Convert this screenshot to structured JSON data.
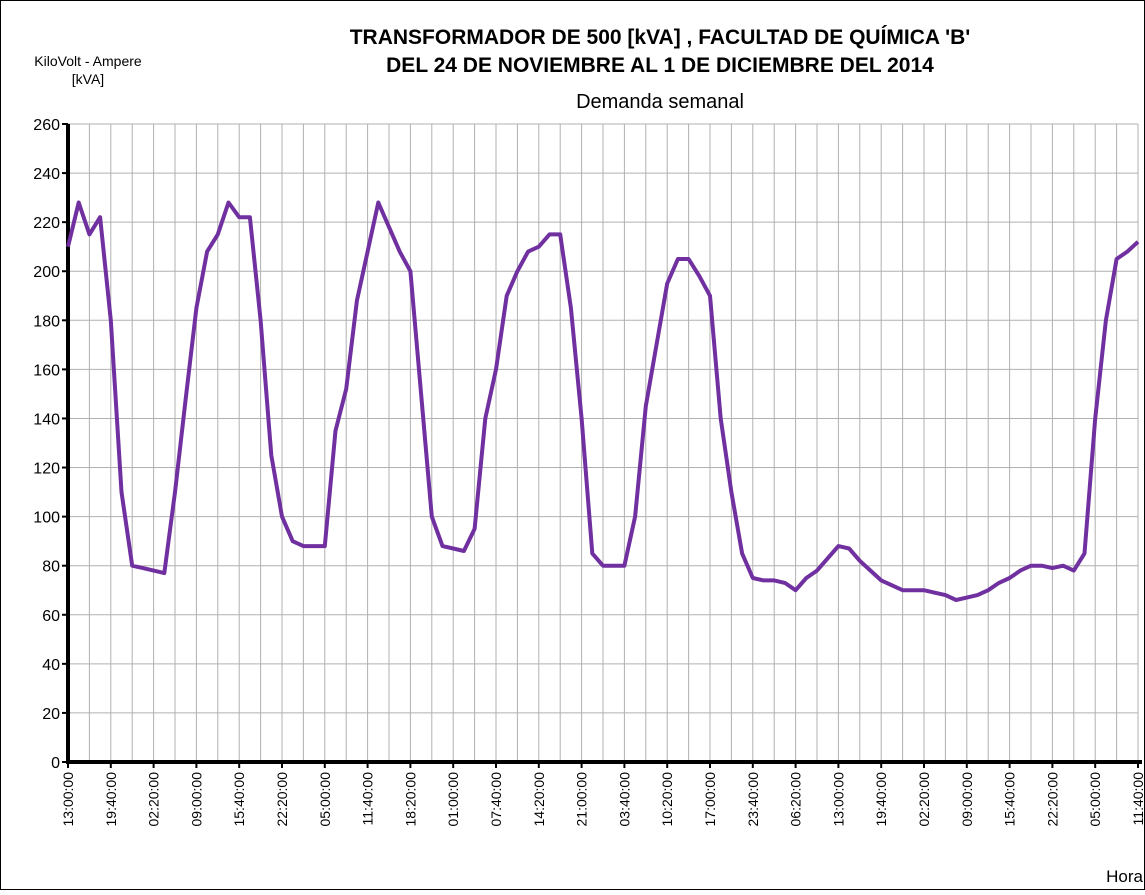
{
  "chart_data": {
    "type": "line",
    "title": [
      "TRANSFORMADOR DE 500 [kVA] , FACULTAD DE QUÍMICA  'B'",
      "DEL 24 DE NOVIEMBRE AL 1 DE DICIEMBRE DEL 2014"
    ],
    "subtitle": "Demanda semanal",
    "ylabel": [
      "KiloVolt - Ampere",
      "[kVA]"
    ],
    "xlabel": "Hora",
    "categories": [
      "13:00:00",
      null,
      null,
      null,
      "19:40:00",
      null,
      null,
      null,
      "02:20:00",
      null,
      null,
      null,
      "09:00:00",
      null,
      null,
      null,
      "15:40:00",
      null,
      null,
      null,
      "22:20:00",
      null,
      null,
      null,
      "05:00:00",
      null,
      null,
      null,
      "11:40:00",
      null,
      null,
      null,
      "18:20:00",
      null,
      null,
      null,
      "01:00:00",
      null,
      null,
      null,
      "07:40:00",
      null,
      null,
      null,
      "14:20:00",
      null,
      null,
      null,
      "21:00:00",
      null,
      null,
      null,
      "03:40:00",
      null,
      null,
      null,
      "10:20:00",
      null,
      null,
      null,
      "17:00:00",
      null,
      null,
      null,
      "23:40:00",
      null,
      null,
      null,
      "06:20:00",
      null,
      null,
      null,
      "13:00:00",
      null,
      null,
      null,
      "19:40:00",
      null,
      null,
      null,
      "02:20:00",
      null,
      null,
      null,
      "09:00:00",
      null,
      null,
      null,
      "15:40:00",
      null,
      null,
      null,
      "22:20:00",
      null,
      null,
      null,
      "05:00:00",
      null,
      null,
      null,
      "11:40:00"
    ],
    "series": [
      {
        "name": "kVA",
        "color": "#7030a0",
        "values": [
          210,
          228,
          215,
          222,
          180,
          110,
          80,
          79,
          78,
          77,
          110,
          148,
          185,
          208,
          215,
          228,
          222,
          222,
          180,
          125,
          100,
          90,
          88,
          88,
          88,
          135,
          152,
          188,
          208,
          228,
          218,
          208,
          200,
          150,
          100,
          88,
          87,
          86,
          95,
          140,
          160,
          190,
          200,
          208,
          210,
          215,
          215,
          185,
          140,
          85,
          80,
          80,
          80,
          100,
          145,
          170,
          195,
          205,
          205,
          198,
          190,
          140,
          110,
          85,
          75,
          74,
          74,
          73,
          70,
          75,
          78,
          83,
          88,
          87,
          82,
          78,
          74,
          72,
          70,
          70,
          70,
          69,
          68,
          66,
          67,
          68,
          70,
          73,
          75,
          78,
          80,
          80,
          79,
          80,
          78,
          85,
          140,
          180,
          205,
          208,
          212
        ]
      }
    ],
    "ylim": [
      0,
      260
    ],
    "yticks": [
      0,
      20,
      40,
      60,
      80,
      100,
      120,
      140,
      160,
      180,
      200,
      220,
      240,
      260
    ],
    "grid": true
  }
}
